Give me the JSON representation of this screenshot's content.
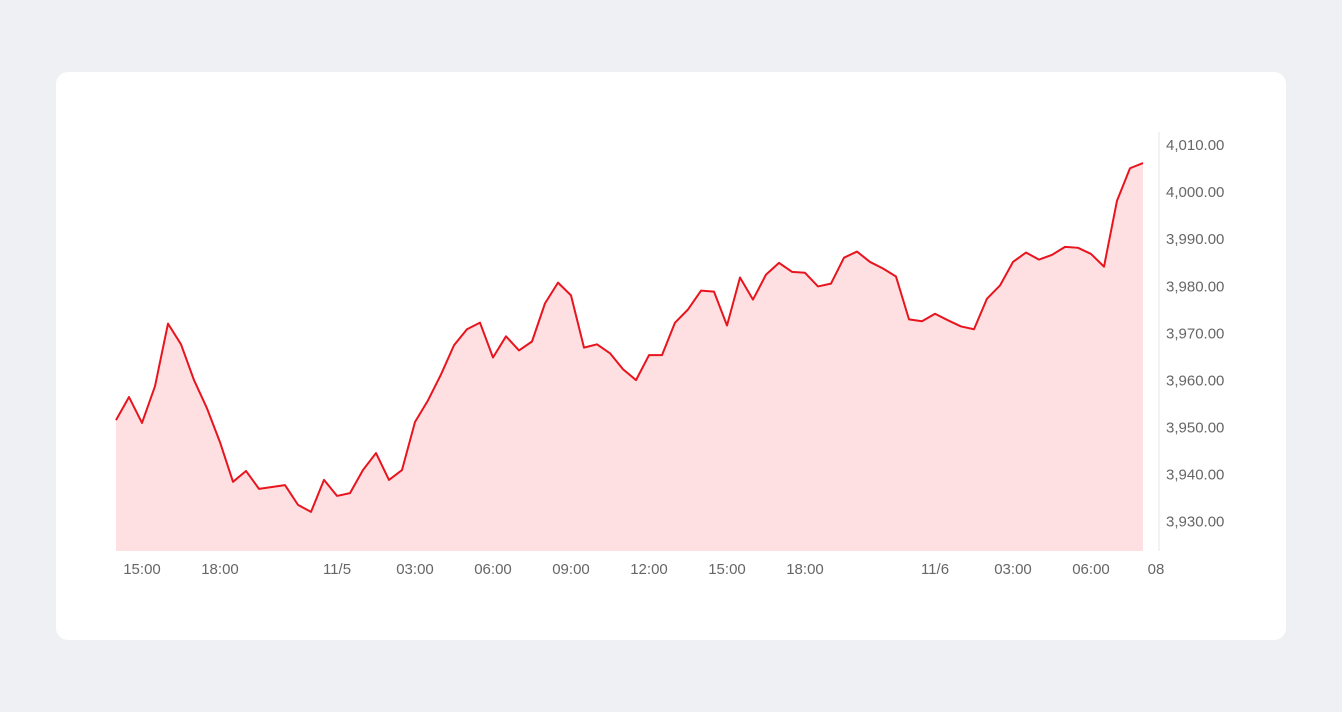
{
  "chart_data": {
    "type": "area",
    "categories": [
      null,
      null,
      "15:00",
      null,
      null,
      null,
      null,
      null,
      "18:00",
      null,
      null,
      null,
      null,
      null,
      null,
      null,
      null,
      "11/5",
      null,
      null,
      null,
      null,
      null,
      "03:00",
      null,
      null,
      null,
      null,
      null,
      "06:00",
      null,
      null,
      null,
      null,
      null,
      "09:00",
      null,
      null,
      null,
      null,
      null,
      "12:00",
      null,
      null,
      null,
      null,
      null,
      "15:00",
      null,
      null,
      null,
      null,
      null,
      "18:00",
      null,
      null,
      null,
      null,
      null,
      null,
      null,
      null,
      null,
      "11/6",
      null,
      null,
      null,
      null,
      null,
      "03:00",
      null,
      null,
      null,
      null,
      null,
      "06:00",
      null,
      null,
      null,
      null,
      "08"
    ],
    "values": [
      3951.8,
      3956.7,
      3951.2,
      3959.0,
      3972.3,
      3967.9,
      3960.3,
      3954.3,
      3947.1,
      3938.7,
      3941.0,
      3937.2,
      3937.6,
      3938.0,
      3933.8,
      3932.3,
      3939.1,
      3935.7,
      3936.3,
      3941.2,
      3944.8,
      3939.1,
      3941.2,
      3951.4,
      3956.0,
      3961.5,
      3967.7,
      3971.1,
      3972.5,
      3965.1,
      3969.6,
      3966.6,
      3968.5,
      3976.6,
      3981.0,
      3978.3,
      3967.2,
      3967.9,
      3966.0,
      3962.6,
      3960.3,
      3965.6,
      3965.6,
      3972.5,
      3975.3,
      3979.3,
      3979.1,
      3971.9,
      3982.1,
      3977.4,
      3982.7,
      3985.2,
      3983.3,
      3983.1,
      3980.2,
      3980.8,
      3986.3,
      3987.6,
      3985.4,
      3984.0,
      3982.3,
      3973.2,
      3972.8,
      3974.4,
      3973.0,
      3971.7,
      3971.1,
      3977.6,
      3980.4,
      3985.4,
      3987.4,
      3985.9,
      3986.9,
      3988.6,
      3988.4,
      3987.1,
      3984.4,
      3998.4,
      4005.3,
      4006.4,
      null
    ],
    "color": "#e8141e",
    "fill": "#ffe0e2",
    "ylim": [
      3924,
      4013
    ],
    "yticks": [
      {
        "value": 3930,
        "label": "3,930.00"
      },
      {
        "value": 3940,
        "label": "3,940.00"
      },
      {
        "value": 3950,
        "label": "3,950.00"
      },
      {
        "value": 3960,
        "label": "3,960.00"
      },
      {
        "value": 3970,
        "label": "3,970.00"
      },
      {
        "value": 3980,
        "label": "3,980.00"
      },
      {
        "value": 3990,
        "label": "3,990.00"
      },
      {
        "value": 4000,
        "label": "4,000.00"
      },
      {
        "value": 4010,
        "label": "4,010.00"
      }
    ],
    "y_axis_side": "right",
    "grid": false
  }
}
